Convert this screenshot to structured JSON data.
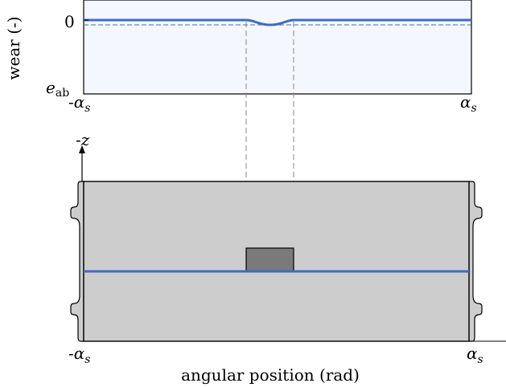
{
  "top_plot": {
    "ylabel": "wear (-)",
    "y_tick_zero": "0",
    "y_tick_bottom_main": "e",
    "y_tick_bottom_sub": "ab",
    "x_tick_left_prefix": "-α",
    "x_tick_right": "α",
    "x_tick_sub": "s"
  },
  "bottom_plot": {
    "axis_label_prefix": "-",
    "axis_label_var": "z",
    "x_tick_left_prefix": "-α",
    "x_tick_right": "α",
    "x_tick_sub": "s",
    "xlabel": "angular position (rad)"
  },
  "colors": {
    "line": "#3b6cc9",
    "panel_fill": "#f4f7fd",
    "body_fill": "#cdcdcd",
    "block_fill": "#7a7a7a",
    "guide": "#888888"
  }
}
